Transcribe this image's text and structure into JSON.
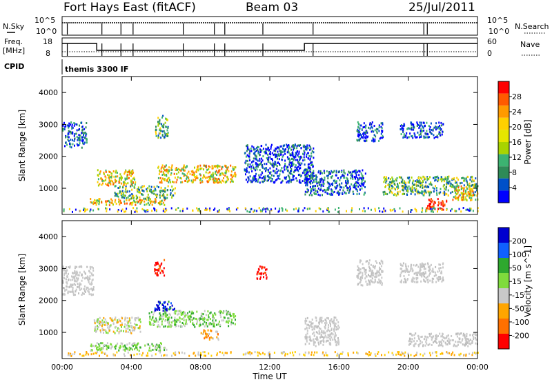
{
  "header": {
    "station": "Fort Hays East (fitACF)",
    "beam": "Beam 03",
    "date": "25/Jul/2011"
  },
  "strip_labels": {
    "nsky": "N.Sky",
    "nsky_ticks": [
      "10^5",
      "10^0"
    ],
    "nsearch": "N.Search",
    "nsearch_ticks": [
      "10^5",
      "10^0"
    ],
    "freq_line1": "Freq.",
    "freq_line2": "[MHz]",
    "freq_ticks": [
      "18",
      "8"
    ],
    "nave": "Nave",
    "nave_ticks": [
      "60",
      "0"
    ],
    "cpid": "CPID",
    "cpid_text": "themis 3300 IF"
  },
  "chart_data": [
    {
      "type": "heatmap",
      "name_panel": "power",
      "ylabel": "Slant Range [km]",
      "x_ticks": [
        "00:00",
        "04:00",
        "08:00",
        "12:00",
        "16:00",
        "20:00",
        "00:00"
      ],
      "x_range_hours": [
        0,
        24
      ],
      "y_ticks": [
        1000,
        2000,
        3000,
        4000
      ],
      "ylim": [
        180,
        4500
      ],
      "colorbar": {
        "label": "Power [dB]",
        "ticks": [
          "28",
          "24",
          "20",
          "16",
          "12",
          "8",
          "4"
        ],
        "colors": [
          "#ff0000",
          "#ff5a00",
          "#ff9a00",
          "#ffd000",
          "#e6e600",
          "#a8d400",
          "#3cb371",
          "#2e8b57",
          "#0050c8",
          "#0000ff"
        ]
      },
      "regions": [
        {
          "t0": 0.0,
          "t1": 1.4,
          "r0": 2300,
          "r1": 3100,
          "level": "low"
        },
        {
          "t0": 2.0,
          "t1": 4.2,
          "r0": 1100,
          "r1": 1600,
          "level": "high"
        },
        {
          "t0": 1.6,
          "t1": 6.0,
          "r0": 500,
          "r1": 700,
          "level": "high"
        },
        {
          "t0": 3.0,
          "t1": 6.5,
          "r0": 700,
          "r1": 1100,
          "level": "mid"
        },
        {
          "t0": 5.5,
          "t1": 10.0,
          "r0": 1200,
          "r1": 1750,
          "level": "high"
        },
        {
          "t0": 5.3,
          "t1": 6.1,
          "r0": 2600,
          "r1": 3300,
          "level": "mid"
        },
        {
          "t0": 10.5,
          "t1": 14.5,
          "r0": 1200,
          "r1": 2400,
          "level": "low"
        },
        {
          "t0": 14.0,
          "t1": 17.5,
          "r0": 800,
          "r1": 1600,
          "level": "low"
        },
        {
          "t0": 17.0,
          "t1": 18.5,
          "r0": 2500,
          "r1": 3100,
          "level": "low"
        },
        {
          "t0": 19.5,
          "t1": 22.0,
          "r0": 2600,
          "r1": 3100,
          "level": "low"
        },
        {
          "t0": 18.5,
          "t1": 24.0,
          "r0": 800,
          "r1": 1400,
          "level": "mid"
        },
        {
          "t0": 21.0,
          "t1": 22.2,
          "r0": 350,
          "r1": 700,
          "level": "max"
        },
        {
          "t0": 22.5,
          "t1": 24.0,
          "r0": 650,
          "r1": 1100,
          "level": "high"
        }
      ]
    },
    {
      "type": "heatmap",
      "name_panel": "velocity",
      "ylabel": "Slant Range [km]",
      "xlabel": "Time UT",
      "x_ticks": [
        "00:00",
        "04:00",
        "08:00",
        "12:00",
        "16:00",
        "20:00",
        "00:00"
      ],
      "x_range_hours": [
        0,
        24
      ],
      "y_ticks": [
        1000,
        2000,
        3000,
        4000
      ],
      "ylim": [
        180,
        4500
      ],
      "colorbar": {
        "label": "Velocity [m s^-1]",
        "ticks": [
          "200",
          "100",
          "50",
          "15",
          "-15",
          "-50",
          "-100",
          "-200"
        ],
        "colors": [
          "#0000d0",
          "#1060ff",
          "#2ea82e",
          "#7fdc3c",
          "#c8c8c8",
          "#ffa500",
          "#ff7000",
          "#ff0000"
        ]
      },
      "regions": [
        {
          "t0": 0.0,
          "t1": 1.8,
          "r0": 2200,
          "r1": 3100,
          "v": "ground"
        },
        {
          "t0": 1.8,
          "t1": 4.5,
          "r0": 1000,
          "r1": 1500,
          "v": "slow-neg"
        },
        {
          "t0": 1.6,
          "t1": 6.0,
          "r0": 450,
          "r1": 700,
          "v": "pos"
        },
        {
          "t0": 5.0,
          "t1": 10.0,
          "r0": 1200,
          "r1": 1700,
          "v": "pos"
        },
        {
          "t0": 5.2,
          "t1": 6.5,
          "r0": 1700,
          "r1": 2000,
          "v": "fast-pos"
        },
        {
          "t0": 5.3,
          "t1": 5.9,
          "r0": 2800,
          "r1": 3300,
          "v": "fast-neg"
        },
        {
          "t0": 8.0,
          "t1": 9.0,
          "r0": 800,
          "r1": 1100,
          "v": "neg"
        },
        {
          "t0": 11.2,
          "t1": 11.8,
          "r0": 2700,
          "r1": 3100,
          "v": "fast-neg"
        },
        {
          "t0": 14.0,
          "t1": 16.0,
          "r0": 600,
          "r1": 1500,
          "v": "ground"
        },
        {
          "t0": 17.0,
          "t1": 18.5,
          "r0": 2500,
          "r1": 3300,
          "v": "ground"
        },
        {
          "t0": 19.5,
          "t1": 22.0,
          "r0": 2600,
          "r1": 3200,
          "v": "ground"
        },
        {
          "t0": 20.0,
          "t1": 24.0,
          "r0": 600,
          "r1": 1000,
          "v": "ground"
        }
      ]
    }
  ]
}
